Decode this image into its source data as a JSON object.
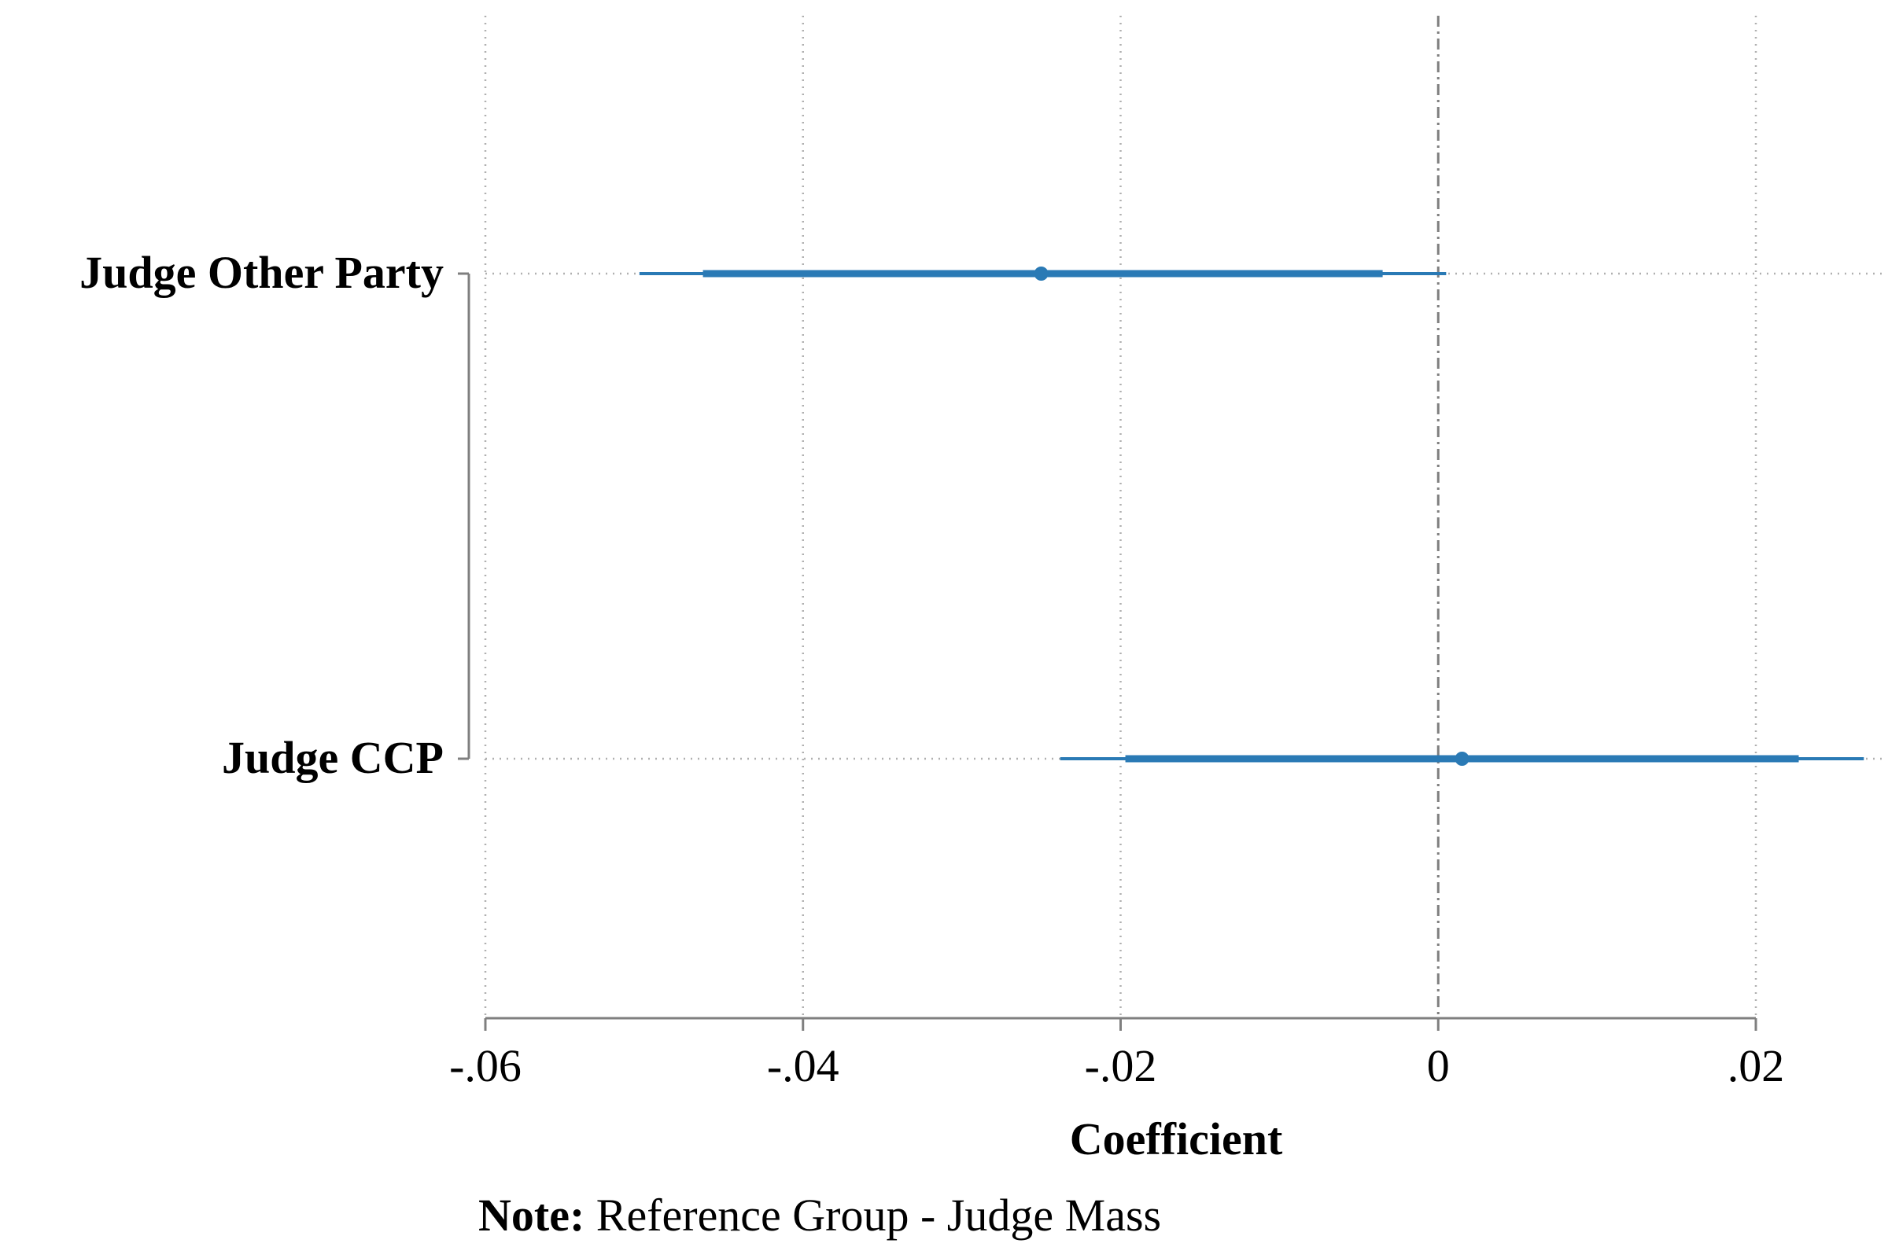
{
  "chart_data": {
    "type": "coefficient-plot",
    "title": "",
    "xlabel": "Coefficient",
    "ylabel": "",
    "xlim": [
      -0.06,
      0.027
    ],
    "x_ticks": [
      -0.06,
      -0.04,
      -0.02,
      0,
      0.02
    ],
    "x_tick_labels": [
      "-.06",
      "-.04",
      "-.02",
      "0",
      ".02"
    ],
    "reference_line": 0,
    "grid": true,
    "series_color": "#2a7ab5",
    "categories": [
      "Judge Other Party",
      "Judge CCP"
    ],
    "estimates": [
      {
        "label": "Judge Other Party",
        "coef": -0.025,
        "ci90": [
          -0.0463,
          -0.0035
        ],
        "ci95": [
          -0.0503,
          0.0005
        ]
      },
      {
        "label": "Judge CCP",
        "coef": 0.0015,
        "ci90": [
          -0.0197,
          0.0227
        ],
        "ci95": [
          -0.0238,
          0.0268
        ]
      }
    ]
  },
  "note": {
    "label": "Note:",
    "text": " Reference Group - Judge Mass"
  }
}
